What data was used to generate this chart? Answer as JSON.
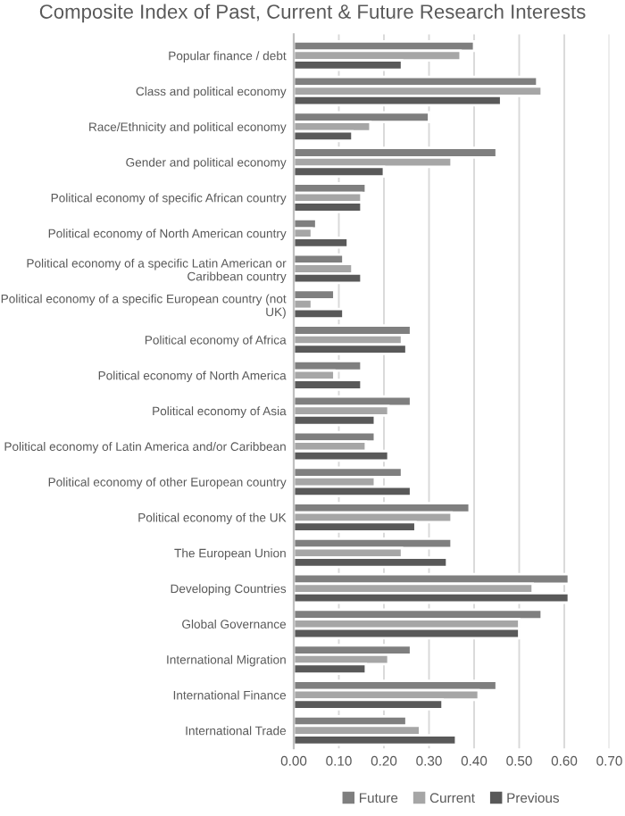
{
  "chart_data": {
    "type": "bar",
    "orientation": "horizontal",
    "title": "Composite Index of Past, Current & Future Research Interests",
    "categories": [
      "Popular finance / debt",
      "Class and political economy",
      "Race/Ethnicity and political economy",
      "Gender and political economy",
      "Political economy of specific African country",
      "Political economy of North American country",
      "Political economy of a specific Latin American or\nCaribbean country",
      "Political economy of a specific European country (not\nUK)",
      "Political economy of Africa",
      "Political economy of North America",
      "Political economy of Asia",
      "Political economy of Latin America and/or Caribbean",
      "Political economy of other European country",
      "Political economy of the UK",
      "The European Union",
      "Developing Countries",
      "Global Governance",
      "International Migration",
      "International Finance",
      "International Trade"
    ],
    "series": [
      {
        "name": "Future",
        "color": "#7f7f7f",
        "values": [
          0.4,
          0.54,
          0.3,
          0.45,
          0.16,
          0.05,
          0.11,
          0.09,
          0.26,
          0.15,
          0.26,
          0.18,
          0.24,
          0.39,
          0.35,
          0.61,
          0.55,
          0.26,
          0.45,
          0.25
        ]
      },
      {
        "name": "Current",
        "color": "#a6a6a6",
        "values": [
          0.37,
          0.55,
          0.17,
          0.35,
          0.15,
          0.04,
          0.13,
          0.04,
          0.24,
          0.09,
          0.21,
          0.16,
          0.18,
          0.35,
          0.24,
          0.53,
          0.5,
          0.21,
          0.41,
          0.28
        ]
      },
      {
        "name": "Previous",
        "color": "#595959",
        "values": [
          0.24,
          0.46,
          0.13,
          0.2,
          0.15,
          0.12,
          0.15,
          0.11,
          0.25,
          0.15,
          0.18,
          0.21,
          0.26,
          0.27,
          0.34,
          0.61,
          0.5,
          0.16,
          0.33,
          0.36
        ]
      }
    ],
    "xlim": [
      0,
      0.7
    ],
    "xticks": [
      {
        "value": 0,
        "label": "0.00"
      },
      {
        "value": 0.1,
        "label": "0.10"
      },
      {
        "value": 0.2,
        "label": "0.20"
      },
      {
        "value": 0.3,
        "label": "0.30"
      },
      {
        "value": 0.4,
        "label": "0.40"
      },
      {
        "value": 0.5,
        "label": "0.50"
      },
      {
        "value": 0.6,
        "label": "0.60"
      },
      {
        "value": 0.7,
        "label": "0.70"
      }
    ],
    "grid": "x",
    "legend": "bottom"
  }
}
